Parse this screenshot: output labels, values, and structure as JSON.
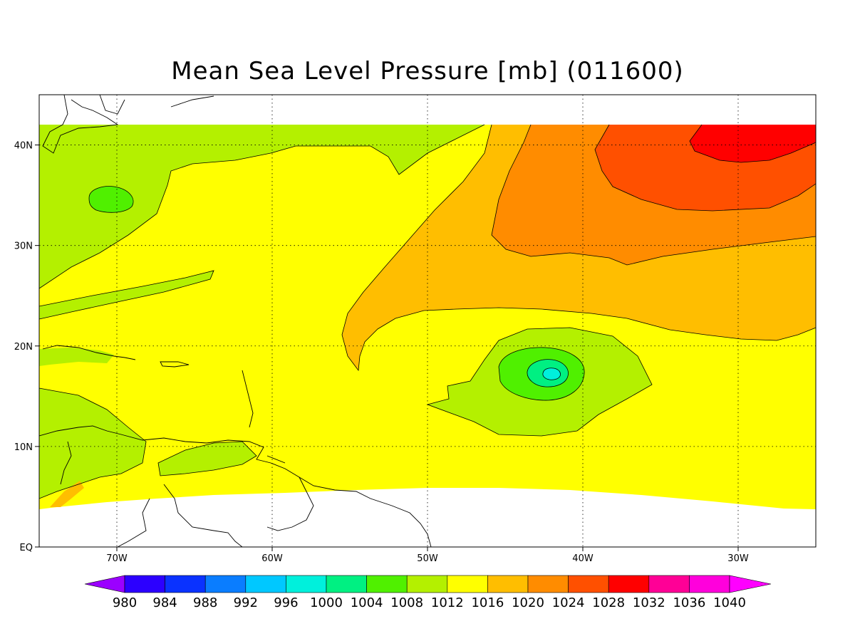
{
  "title": "Mean Sea Level Pressure [mb] (011600)",
  "map": {
    "lon_range": [
      -75,
      -25
    ],
    "lat_range": [
      0,
      45
    ],
    "lon_ticks": [
      {
        "value": -70,
        "label": "70W"
      },
      {
        "value": -60,
        "label": "60W"
      },
      {
        "value": -50,
        "label": "50W"
      },
      {
        "value": -40,
        "label": "40W"
      },
      {
        "value": -30,
        "label": "30W"
      }
    ],
    "lat_ticks": [
      {
        "value": 0,
        "label": "EQ"
      },
      {
        "value": 10,
        "label": "10N"
      },
      {
        "value": 20,
        "label": "20N"
      },
      {
        "value": 30,
        "label": "30N"
      },
      {
        "value": 40,
        "label": "40N"
      }
    ],
    "grid": "dotted",
    "background_level_color": "#ffff00"
  },
  "colorbar": {
    "levels": [
      "980",
      "984",
      "988",
      "992",
      "996",
      "1000",
      "1004",
      "1008",
      "1012",
      "1016",
      "1020",
      "1024",
      "1028",
      "1032",
      "1036",
      "1040"
    ],
    "colors": [
      "#9b00ff",
      "#2c00ff",
      "#0a32ff",
      "#0a7dff",
      "#00c8ff",
      "#00f0dc",
      "#00f082",
      "#50f000",
      "#b4f000",
      "#ffff00",
      "#ffbe00",
      "#ff8c00",
      "#ff5000",
      "#ff0000",
      "#ff0096",
      "#ff00dc",
      "#ff00ff"
    ]
  }
}
